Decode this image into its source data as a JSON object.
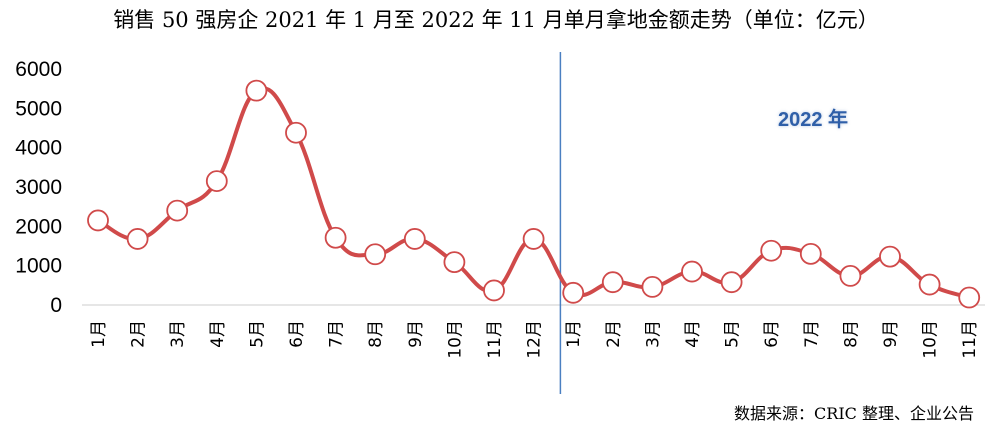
{
  "title": "销售 50 强房企 2021 年 1 月至 2022 年 11 月单月拿地金额走势（单位：亿元）",
  "source": "数据来源：CRIC 整理、企业公告",
  "colors": {
    "line": "#d04a4a",
    "marker_fill": "#ffffff",
    "divider": "#4a7fc1",
    "annotation": "#2f5fa8",
    "axis": "#cccccc"
  },
  "chart_data": {
    "type": "line",
    "title": "销售 50 强房企 2021 年 1 月至 2022 年 11 月单月拿地金额走势（单位：亿元）",
    "xlabel": "",
    "ylabel": "",
    "ylim": [
      0,
      6000
    ],
    "yticks": [
      0,
      1000,
      2000,
      3000,
      4000,
      5000,
      6000
    ],
    "grid": false,
    "categories": [
      "1月",
      "2月",
      "3月",
      "4月",
      "5月",
      "6月",
      "7月",
      "8月",
      "9月",
      "10月",
      "11月",
      "12月",
      "1月",
      "2月",
      "3月",
      "4月",
      "5月",
      "6月",
      "7月",
      "8月",
      "9月",
      "10月",
      "11月"
    ],
    "series": [
      {
        "values": [
          2150,
          1680,
          2400,
          3150,
          5450,
          4380,
          1710,
          1290,
          1680,
          1090,
          370,
          1680,
          310,
          580,
          460,
          850,
          580,
          1380,
          1300,
          740,
          1230,
          520,
          190
        ]
      }
    ],
    "annotations": [
      {
        "text": "2022 年",
        "between": [
          "12月",
          "1月"
        ]
      }
    ]
  }
}
